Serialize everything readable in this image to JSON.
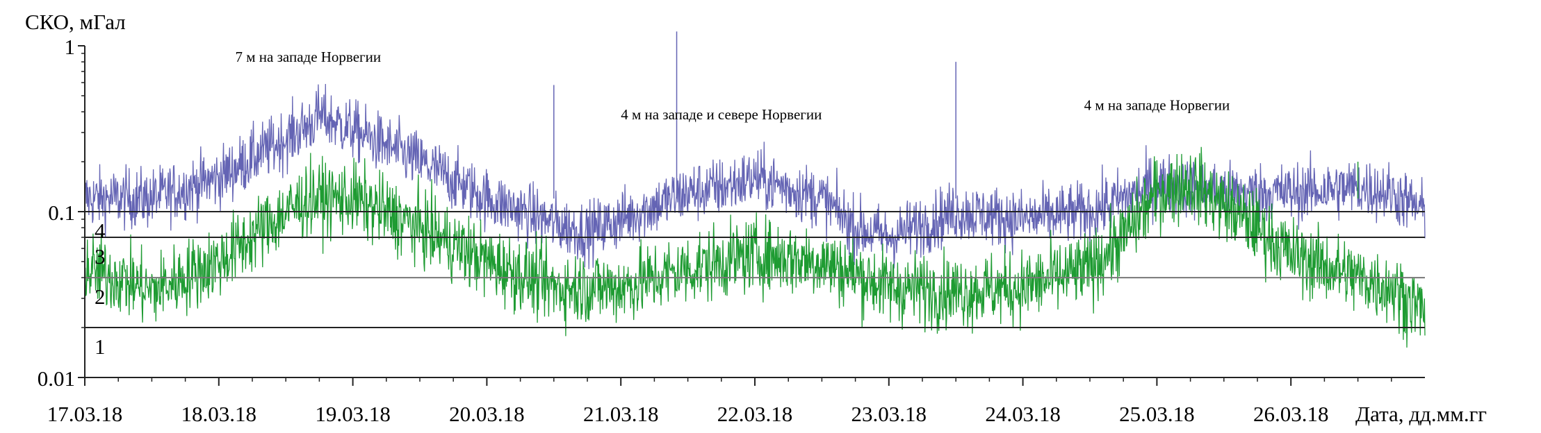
{
  "chart_data": {
    "type": "line",
    "ylabel": "СКО, мГал",
    "xlabel": "Дата, дд.мм.гг",
    "yscale": "log",
    "ylim": [
      0.01,
      1
    ],
    "y_ticks": [
      {
        "value": 0.01,
        "label": "0.01"
      },
      {
        "value": 0.1,
        "label": "0.1"
      },
      {
        "value": 1,
        "label": "1"
      }
    ],
    "xlim": [
      "2018-03-17",
      "2018-03-27"
    ],
    "x_ticks": [
      "17.03.18",
      "18.03.18",
      "19.03.18",
      "20.03.18",
      "21.03.18",
      "22.03.18",
      "23.03.18",
      "24.03.18",
      "25.03.18",
      "26.03.18"
    ],
    "level_lines": [
      {
        "label": "1",
        "value": 0.02
      },
      {
        "label": "2",
        "value": 0.04
      },
      {
        "label": "3",
        "value": 0.07
      },
      {
        "label": "4",
        "value": 0.1
      }
    ],
    "series": [
      {
        "color": "#6464b4",
        "points": [
          [
            "2018-03-17",
            0.12
          ],
          [
            "2018-03-17T12:00",
            0.12
          ],
          [
            "2018-03-18",
            0.16
          ],
          [
            "2018-03-18T08:00",
            0.23
          ],
          [
            "2018-03-18T16:00",
            0.33
          ],
          [
            "2018-03-18T18:00",
            0.38
          ],
          [
            "2018-03-19",
            0.31
          ],
          [
            "2018-03-19T12:00",
            0.2
          ],
          [
            "2018-03-20",
            0.12
          ],
          [
            "2018-03-20T12:00",
            0.085
          ],
          [
            "2018-03-20T18:00",
            0.075
          ],
          [
            "2018-03-21",
            0.09
          ],
          [
            "2018-03-21T12:00",
            0.13
          ],
          [
            "2018-03-21T18:00",
            0.14
          ],
          [
            "2018-03-22",
            0.16
          ],
          [
            "2018-03-22T12:00",
            0.12
          ],
          [
            "2018-03-22T18:00",
            0.08
          ],
          [
            "2018-03-23",
            0.07
          ],
          [
            "2018-03-23T12:00",
            0.1
          ],
          [
            "2018-03-24",
            0.09
          ],
          [
            "2018-03-24T12:00",
            0.1
          ],
          [
            "2018-03-24T18:00",
            0.12
          ],
          [
            "2018-03-25",
            0.15
          ],
          [
            "2018-03-25T12:00",
            0.13
          ],
          [
            "2018-03-26",
            0.13
          ],
          [
            "2018-03-26T12:00",
            0.14
          ],
          [
            "2018-03-26T18:00",
            0.13
          ],
          [
            "2018-03-27",
            0.1
          ]
        ]
      },
      {
        "color": "#1e9b32",
        "points": [
          [
            "2018-03-17",
            0.045
          ],
          [
            "2018-03-17T06:00",
            0.04
          ],
          [
            "2018-03-17T12:00",
            0.033
          ],
          [
            "2018-03-18",
            0.05
          ],
          [
            "2018-03-18T08:00",
            0.08
          ],
          [
            "2018-03-18T16:00",
            0.12
          ],
          [
            "2018-03-19",
            0.12
          ],
          [
            "2018-03-19T12:00",
            0.08
          ],
          [
            "2018-03-20",
            0.05
          ],
          [
            "2018-03-20T12:00",
            0.035
          ],
          [
            "2018-03-21",
            0.035
          ],
          [
            "2018-03-21T12:00",
            0.045
          ],
          [
            "2018-03-22",
            0.055
          ],
          [
            "2018-03-22T12:00",
            0.05
          ],
          [
            "2018-03-23",
            0.035
          ],
          [
            "2018-03-23T12:00",
            0.033
          ],
          [
            "2018-03-24",
            0.035
          ],
          [
            "2018-03-24T12:00",
            0.045
          ],
          [
            "2018-03-24T18:00",
            0.07
          ],
          [
            "2018-03-25",
            0.13
          ],
          [
            "2018-03-25T06:00",
            0.15
          ],
          [
            "2018-03-25T18:00",
            0.08
          ],
          [
            "2018-03-26",
            0.055
          ],
          [
            "2018-03-26T12:00",
            0.04
          ],
          [
            "2018-03-26T18:00",
            0.035
          ],
          [
            "2018-03-27",
            0.025
          ]
        ]
      }
    ],
    "spikes": [
      {
        "x": "2018-03-20T12:00",
        "value": 0.58
      },
      {
        "x": "2018-03-21T10:00",
        "value": 1.22
      },
      {
        "x": "2018-03-23T12:00",
        "value": 0.8
      },
      {
        "x": "2018-03-26T12:00",
        "value": 0.2
      }
    ],
    "annotations": [
      {
        "text": "7 м на западе Норвегии",
        "x": "2018-03-18T16:00",
        "y": 0.8
      },
      {
        "text": "4 м на западе и севере Норвегии",
        "x": "2018-03-21T18:00",
        "y": 0.36
      },
      {
        "text": "4 м на западе Норвегии",
        "x": "2018-03-25",
        "y": 0.41
      }
    ]
  }
}
